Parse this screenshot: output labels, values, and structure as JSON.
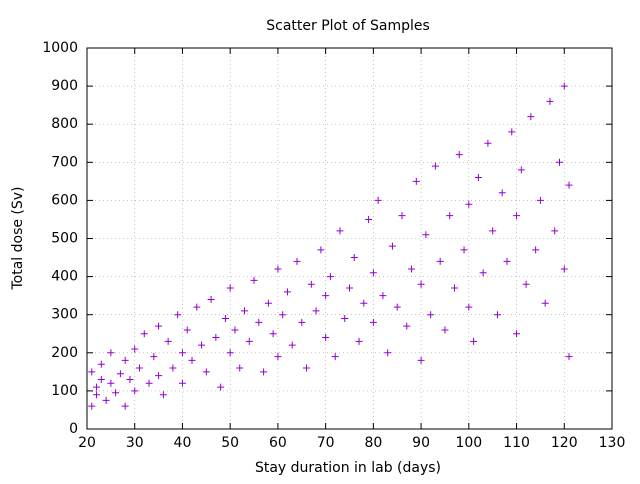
{
  "chart_data": {
    "type": "scatter",
    "title": "Scatter Plot of Samples",
    "x_label": "Stay duration in lab (days)",
    "y_label": "Total dose (Sv)",
    "color": "#9400d3",
    "grid": true,
    "xlim": [
      20,
      130
    ],
    "xticks": [
      20,
      30,
      40,
      50,
      60,
      70,
      80,
      90,
      100,
      110,
      120,
      130
    ],
    "ylim": [
      0,
      1000
    ],
    "yticks": [
      0,
      100,
      200,
      300,
      400,
      500,
      600,
      700,
      800,
      900,
      1000
    ],
    "x": [
      21,
      21,
      22,
      22,
      23,
      23,
      24,
      25,
      25,
      26,
      27,
      28,
      28,
      29,
      30,
      30,
      31,
      32,
      33,
      34,
      35,
      35,
      36,
      37,
      38,
      39,
      40,
      40,
      41,
      42,
      43,
      44,
      45,
      46,
      47,
      48,
      49,
      50,
      50,
      51,
      52,
      53,
      54,
      55,
      56,
      57,
      58,
      59,
      60,
      60,
      61,
      62,
      63,
      64,
      65,
      66,
      67,
      68,
      69,
      70,
      70,
      71,
      72,
      73,
      74,
      75,
      76,
      77,
      78,
      79,
      80,
      80,
      81,
      82,
      83,
      84,
      85,
      86,
      87,
      88,
      89,
      90,
      90,
      91,
      92,
      93,
      94,
      95,
      96,
      97,
      98,
      99,
      100,
      100,
      101,
      102,
      103,
      104,
      105,
      106,
      107,
      108,
      109,
      110,
      110,
      111,
      112,
      113,
      114,
      115,
      116,
      117,
      118,
      119,
      120,
      120,
      121,
      121
    ],
    "values": [
      60,
      150,
      110,
      90,
      170,
      130,
      75,
      120,
      200,
      95,
      145,
      180,
      60,
      130,
      210,
      100,
      160,
      250,
      120,
      190,
      270,
      140,
      90,
      230,
      160,
      300,
      200,
      120,
      260,
      180,
      320,
      220,
      150,
      340,
      240,
      110,
      290,
      200,
      370,
      260,
      160,
      310,
      230,
      390,
      280,
      150,
      330,
      250,
      420,
      190,
      300,
      360,
      220,
      440,
      280,
      160,
      380,
      310,
      470,
      240,
      350,
      400,
      190,
      520,
      290,
      370,
      450,
      230,
      330,
      550,
      280,
      410,
      600,
      350,
      200,
      480,
      320,
      560,
      270,
      420,
      650,
      380,
      180,
      510,
      300,
      690,
      440,
      260,
      560,
      370,
      720,
      470,
      320,
      590,
      230,
      660,
      410,
      750,
      520,
      300,
      620,
      440,
      780,
      250,
      560,
      680,
      380,
      820,
      470,
      600,
      330,
      860,
      520,
      700,
      420,
      900,
      190,
      640
    ]
  }
}
